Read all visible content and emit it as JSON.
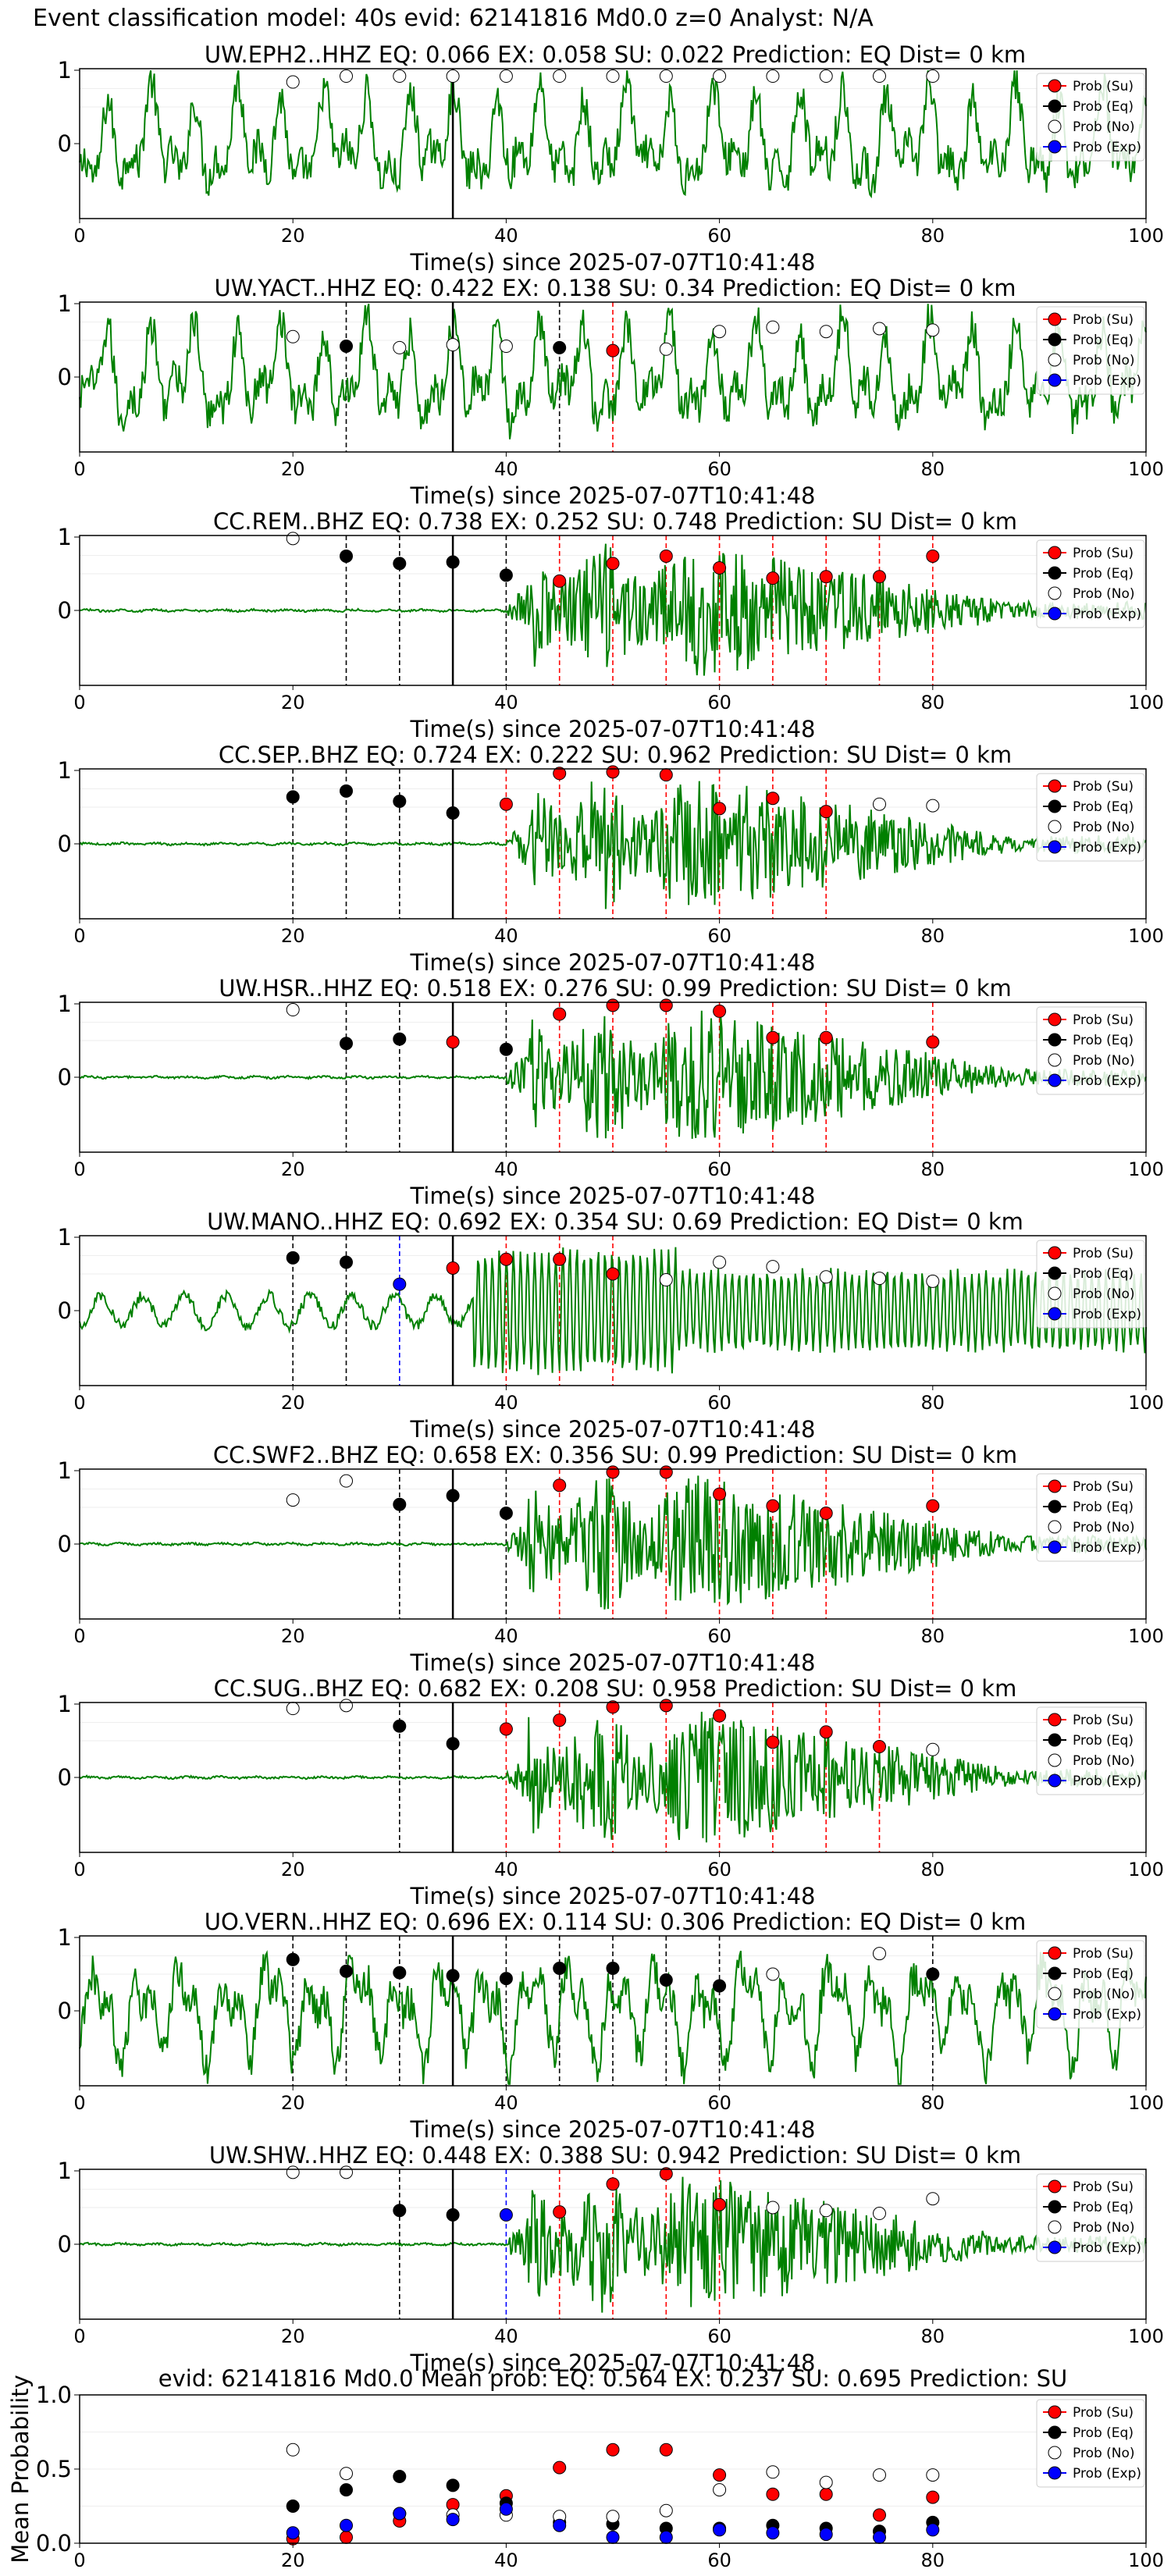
{
  "title": "Event classification model: 40s evid: 62141816 Md0.0 z=0 Analyst: N/A",
  "colors": {
    "su": "#ff0000",
    "eq": "#000000",
    "no": "#ffffff",
    "exp": "#0000ff",
    "wave": "#008000"
  },
  "legend": [
    "Prob (Su)",
    "Prob (Eq)",
    "Prob (No)",
    "Prob (Exp)"
  ],
  "xlabel": "Time(s) since 2025-07-07T10:41:48",
  "xticks": [
    "0",
    "20",
    "40",
    "60",
    "80",
    "100"
  ],
  "yticks": [
    "1",
    "0"
  ],
  "origin_time": 35,
  "chart_data": [
    {
      "type": "line",
      "station": "UW.EPH2..HHZ",
      "title": "UW.EPH2..HHZ   EQ: 0.066  EX: 0.058  SU: 0.022   Prediction: EQ    Dist= 0 km",
      "xlim": [
        0,
        100
      ],
      "ylim": [
        -1,
        1
      ],
      "waveform": "noise",
      "classes": [
        "no",
        "no",
        "no",
        "no",
        "no",
        "no",
        "no",
        "no",
        "no",
        "no",
        "no",
        "no",
        "no"
      ],
      "probs": [
        0.84,
        0.92,
        0.92,
        0.92,
        0.92,
        0.92,
        0.92,
        0.92,
        0.92,
        0.92,
        0.92,
        0.92,
        0.92
      ],
      "vlines": []
    },
    {
      "type": "line",
      "station": "UW.YACT..HHZ",
      "title": "UW.YACT..HHZ   EQ: 0.422  EX: 0.138  SU: 0.34   Prediction: EQ    Dist= 0 km",
      "xlim": [
        0,
        100
      ],
      "ylim": [
        -1,
        1
      ],
      "waveform": "noise",
      "classes": [
        "no",
        "eq",
        "no",
        "no",
        "no",
        "eq",
        "su",
        "no",
        "no",
        "no",
        "no",
        "no",
        "no"
      ],
      "probs": [
        0.55,
        0.42,
        0.4,
        0.44,
        0.42,
        0.4,
        0.36,
        0.38,
        0.62,
        0.68,
        0.62,
        0.66,
        0.64
      ],
      "vlines": [
        "",
        "eq",
        "",
        "",
        "",
        "eq",
        "su",
        "",
        "",
        "",
        "",
        "",
        ""
      ]
    },
    {
      "type": "line",
      "station": "CC.REM..BHZ",
      "title": "CC.REM..BHZ   EQ: 0.738  EX: 0.252  SU: 0.748   Prediction: SU    Dist= 0 km",
      "xlim": [
        0,
        100
      ],
      "ylim": [
        -1,
        1
      ],
      "waveform": "burst",
      "classes": [
        "no",
        "eq",
        "eq",
        "eq",
        "eq",
        "su",
        "su",
        "su",
        "su",
        "su",
        "su",
        "su",
        "su"
      ],
      "probs": [
        0.98,
        0.74,
        0.64,
        0.66,
        0.48,
        0.4,
        0.64,
        0.74,
        0.58,
        0.44,
        0.46,
        0.46,
        0.74
      ],
      "vlines": [
        "",
        "eq",
        "eq",
        "",
        "eq",
        "su",
        "su",
        "su",
        "su",
        "su",
        "su",
        "su",
        "su"
      ]
    },
    {
      "type": "line",
      "station": "CC.SEP..BHZ",
      "title": "CC.SEP..BHZ   EQ: 0.724  EX: 0.222  SU: 0.962   Prediction: SU    Dist= 0 km",
      "xlim": [
        0,
        100
      ],
      "ylim": [
        -1,
        1
      ],
      "waveform": "burst",
      "classes": [
        "eq",
        "eq",
        "eq",
        "eq",
        "su",
        "su",
        "su",
        "su",
        "su",
        "su",
        "su",
        "no",
        "no"
      ],
      "probs": [
        0.64,
        0.72,
        0.58,
        0.42,
        0.54,
        0.96,
        0.98,
        0.94,
        0.48,
        0.62,
        0.44,
        0.54,
        0.52
      ],
      "vlines": [
        "eq",
        "eq",
        "eq",
        "",
        "su",
        "su",
        "su",
        "su",
        "su",
        "su",
        "su",
        "",
        ""
      ]
    },
    {
      "type": "line",
      "station": "UW.HSR..HHZ",
      "title": "UW.HSR..HHZ   EQ: 0.518  EX: 0.276  SU: 0.99   Prediction: SU    Dist= 0 km",
      "xlim": [
        0,
        100
      ],
      "ylim": [
        -1,
        1
      ],
      "waveform": "burst",
      "classes": [
        "no",
        "eq",
        "eq",
        "su",
        "eq",
        "su",
        "su",
        "su",
        "su",
        "su",
        "su",
        "",
        "su"
      ],
      "probs": [
        0.92,
        0.46,
        0.52,
        0.48,
        0.38,
        0.86,
        0.98,
        0.98,
        0.9,
        0.54,
        0.54,
        0,
        0.48
      ],
      "vlines": [
        "",
        "eq",
        "eq",
        "",
        "eq",
        "su",
        "su",
        "su",
        "su",
        "su",
        "su",
        "",
        "su"
      ]
    },
    {
      "type": "line",
      "station": "UW.MANO..HHZ",
      "title": "UW.MANO..HHZ   EQ: 0.692  EX: 0.354  SU: 0.69   Prediction: EQ    Dist= 0 km",
      "xlim": [
        0,
        100
      ],
      "ylim": [
        -1,
        1
      ],
      "waveform": "mixed",
      "classes": [
        "eq",
        "eq",
        "exp",
        "su",
        "su",
        "su",
        "su",
        "no",
        "no",
        "no",
        "no",
        "no",
        "no"
      ],
      "probs": [
        0.72,
        0.66,
        0.36,
        0.58,
        0.7,
        0.7,
        0.5,
        0.42,
        0.66,
        0.6,
        0.46,
        0.44,
        0.4
      ],
      "vlines": [
        "eq",
        "eq",
        "exp",
        "",
        "su",
        "su",
        "su",
        "",
        "",
        "",
        "",
        "",
        ""
      ]
    },
    {
      "type": "line",
      "station": "CC.SWF2..BHZ",
      "title": "CC.SWF2..BHZ   EQ: 0.658  EX: 0.356  SU: 0.99   Prediction: SU    Dist= 0 km",
      "xlim": [
        0,
        100
      ],
      "ylim": [
        -1,
        1
      ],
      "waveform": "burst",
      "classes": [
        "no",
        "no",
        "eq",
        "eq",
        "eq",
        "su",
        "su",
        "su",
        "su",
        "su",
        "su",
        "",
        "su"
      ],
      "probs": [
        0.6,
        0.86,
        0.54,
        0.66,
        0.42,
        0.8,
        0.98,
        0.98,
        0.68,
        0.52,
        0.42,
        0,
        0.52
      ],
      "vlines": [
        "",
        "",
        "eq",
        "",
        "eq",
        "su",
        "su",
        "su",
        "su",
        "su",
        "su",
        "",
        "su"
      ]
    },
    {
      "type": "line",
      "station": "CC.SUG..BHZ",
      "title": "CC.SUG..BHZ   EQ: 0.682  EX: 0.208  SU: 0.958   Prediction: SU    Dist= 0 km",
      "xlim": [
        0,
        100
      ],
      "ylim": [
        -1,
        1
      ],
      "waveform": "burst",
      "classes": [
        "no",
        "no",
        "eq",
        "eq",
        "su",
        "su",
        "su",
        "su",
        "su",
        "su",
        "su",
        "su",
        "no"
      ],
      "probs": [
        0.94,
        0.98,
        0.7,
        0.46,
        0.66,
        0.78,
        0.96,
        0.98,
        0.84,
        0.48,
        0.62,
        0.42,
        0.38
      ],
      "vlines": [
        "",
        "",
        "eq",
        "",
        "su",
        "su",
        "su",
        "su",
        "su",
        "su",
        "su",
        "su",
        ""
      ]
    },
    {
      "type": "line",
      "station": "UO.VERN..HHZ",
      "title": "UO.VERN..HHZ   EQ: 0.696  EX: 0.114  SU: 0.306   Prediction: EQ    Dist= 0 km",
      "xlim": [
        0,
        100
      ],
      "ylim": [
        -1,
        1
      ],
      "waveform": "noise",
      "classes": [
        "eq",
        "eq",
        "eq",
        "eq",
        "eq",
        "eq",
        "eq",
        "eq",
        "eq",
        "no",
        "",
        "no",
        "eq"
      ],
      "probs": [
        0.7,
        0.54,
        0.52,
        0.48,
        0.44,
        0.58,
        0.58,
        0.42,
        0.34,
        0.5,
        0,
        0.78,
        0.5
      ],
      "vlines": [
        "eq",
        "eq",
        "eq",
        "",
        "eq",
        "eq",
        "eq",
        "eq",
        "eq",
        "",
        "",
        "",
        "eq"
      ]
    },
    {
      "type": "line",
      "station": "UW.SHW..HHZ",
      "title": "UW.SHW..HHZ   EQ: 0.448  EX: 0.388  SU: 0.942   Prediction: SU    Dist= 0 km",
      "xlim": [
        0,
        100
      ],
      "ylim": [
        -1,
        1
      ],
      "waveform": "burst",
      "classes": [
        "no",
        "no",
        "eq",
        "eq",
        "exp",
        "su",
        "su",
        "su",
        "su",
        "no",
        "no",
        "no",
        "no"
      ],
      "probs": [
        0.98,
        0.98,
        0.46,
        0.4,
        0.4,
        0.44,
        0.82,
        0.96,
        0.54,
        0.5,
        0.46,
        0.42,
        0.62
      ],
      "vlines": [
        "",
        "",
        "eq",
        "",
        "exp",
        "su",
        "su",
        "su",
        "su",
        "",
        "",
        "",
        ""
      ]
    },
    {
      "type": "scatter",
      "title": "evid: 62141816  Md0.0   Mean prob:   EQ: 0.564  EX: 0.237  SU: 0.695   Prediction: SU",
      "ylabel": "Mean Probability",
      "xlim": [
        0,
        100
      ],
      "ylim": [
        0,
        1
      ],
      "yticks": [
        "0.0",
        "0.5",
        "1.0"
      ],
      "x": [
        20,
        25,
        30,
        35,
        40,
        45,
        50,
        55,
        60,
        65,
        70,
        75,
        80
      ],
      "series": [
        {
          "name": "Prob (Su)",
          "values": [
            0.03,
            0.04,
            0.15,
            0.26,
            0.32,
            0.51,
            0.63,
            0.63,
            0.46,
            0.33,
            0.33,
            0.19,
            0.31
          ]
        },
        {
          "name": "Prob (Eq)",
          "values": [
            0.25,
            0.36,
            0.45,
            0.39,
            0.27,
            0.14,
            0.13,
            0.1,
            0.1,
            0.12,
            0.1,
            0.08,
            0.14
          ]
        },
        {
          "name": "Prob (No)",
          "values": [
            0.63,
            0.47,
            0.2,
            0.19,
            0.19,
            0.18,
            0.18,
            0.22,
            0.36,
            0.48,
            0.41,
            0.46,
            0.46
          ]
        },
        {
          "name": "Prob (Exp)",
          "values": [
            0.07,
            0.12,
            0.2,
            0.16,
            0.23,
            0.12,
            0.04,
            0.04,
            0.09,
            0.07,
            0.06,
            0.04,
            0.09
          ]
        }
      ]
    }
  ]
}
